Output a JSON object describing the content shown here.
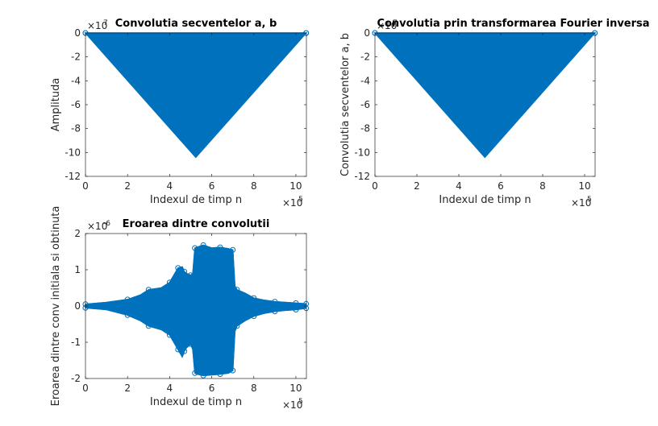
{
  "figure": {
    "background": "#ffffff",
    "accent": "#0072bd"
  },
  "chart_data": [
    {
      "type": "scatter",
      "title": "Convolutia secventelor a, b",
      "xlabel": "Indexul de timp n",
      "ylabel": "Amplituda",
      "xlim": [
        0,
        1050000
      ],
      "ylim": [
        -12,
        0
      ],
      "x_multiplier": "×10",
      "x_exponent": "5",
      "y_multiplier": "×10",
      "y_exponent": "7",
      "x_tick_values": [
        0,
        200000,
        400000,
        600000,
        800000,
        1000000
      ],
      "x_tick_labels": [
        "0",
        "2",
        "4",
        "6",
        "8",
        "10"
      ],
      "y_tick_values": [
        0,
        -2,
        -4,
        -6,
        -8,
        -10,
        -12
      ],
      "y_tick_labels": [
        "0",
        "-2",
        "-4",
        "-6",
        "-8",
        "-10",
        "-12"
      ],
      "envelope": {
        "x": [
          0,
          524288,
          1048575
        ],
        "upper": [
          0,
          0,
          0
        ],
        "lower": [
          0,
          -10.4,
          0
        ]
      },
      "marker": "circle",
      "color": "#0072bd"
    },
    {
      "type": "scatter",
      "title": "Convolutia prin transformarea Fourier inversa",
      "xlabel": "Indexul de timp n",
      "ylabel": "Convolutia secventelor a, b",
      "xlim": [
        0,
        1050000
      ],
      "ylim": [
        -12,
        0
      ],
      "x_multiplier": "×10",
      "x_exponent": "5",
      "y_multiplier": "×10",
      "y_exponent": "7",
      "x_tick_values": [
        0,
        200000,
        400000,
        600000,
        800000,
        1000000
      ],
      "x_tick_labels": [
        "0",
        "2",
        "4",
        "6",
        "8",
        "10"
      ],
      "y_tick_values": [
        0,
        -2,
        -4,
        -6,
        -8,
        -10,
        -12
      ],
      "y_tick_labels": [
        "0",
        "-2",
        "-4",
        "-6",
        "-8",
        "-10",
        "-12"
      ],
      "envelope": {
        "x": [
          0,
          524288,
          1048575
        ],
        "upper": [
          0,
          0,
          0
        ],
        "lower": [
          0,
          -10.4,
          0
        ]
      },
      "marker": "circle",
      "color": "#0072bd"
    },
    {
      "type": "scatter",
      "title": "Eroarea dintre convolutii",
      "xlabel": "Indexul de timp n",
      "ylabel": "Eroarea dintre conv initiala si obtinuta",
      "xlim": [
        0,
        1050000
      ],
      "ylim": [
        -2,
        2
      ],
      "x_multiplier": "×10",
      "x_exponent": "5",
      "y_multiplier": "×10",
      "y_exponent": "-6",
      "x_tick_values": [
        0,
        200000,
        400000,
        600000,
        800000,
        1000000
      ],
      "x_tick_labels": [
        "0",
        "2",
        "4",
        "6",
        "8",
        "10"
      ],
      "y_tick_values": [
        2,
        1,
        0,
        -1,
        -2
      ],
      "y_tick_labels": [
        "2",
        "1",
        "0",
        "-1",
        "-2"
      ],
      "envelope": {
        "x": [
          0,
          100000,
          200000,
          260000,
          300000,
          360000,
          400000,
          420000,
          440000,
          460000,
          470000,
          480000,
          500000,
          510000,
          520000,
          530000,
          560000,
          600000,
          640000,
          680000,
          700000,
          710000,
          720000,
          760000,
          800000,
          850000,
          900000,
          950000,
          1000000,
          1048575
        ],
        "upper": [
          0.05,
          0.1,
          0.18,
          0.3,
          0.45,
          0.5,
          0.65,
          0.85,
          1.05,
          1.08,
          0.95,
          0.9,
          0.85,
          0.9,
          1.6,
          1.62,
          1.68,
          1.6,
          1.62,
          1.58,
          1.55,
          0.55,
          0.45,
          0.35,
          0.22,
          0.16,
          0.12,
          0.1,
          0.08,
          0.06
        ],
        "lower": [
          -0.05,
          -0.1,
          -0.25,
          -0.4,
          -0.55,
          -0.65,
          -0.8,
          -1.0,
          -1.2,
          -1.4,
          -1.25,
          -1.15,
          -1.05,
          -1.2,
          -1.85,
          -1.88,
          -1.92,
          -1.9,
          -1.88,
          -1.85,
          -1.78,
          -0.7,
          -0.55,
          -0.4,
          -0.28,
          -0.2,
          -0.15,
          -0.12,
          -0.1,
          -0.06
        ]
      },
      "marker": "circle",
      "color": "#0072bd"
    }
  ]
}
